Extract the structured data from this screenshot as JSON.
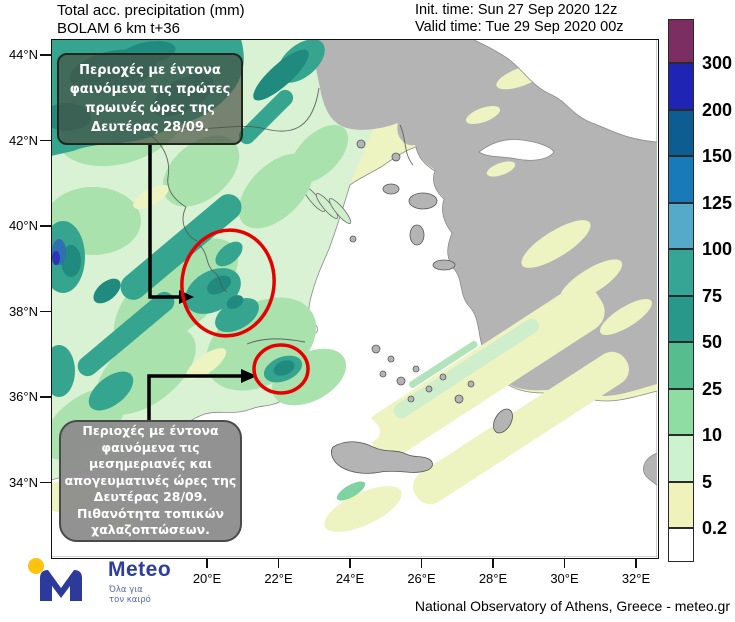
{
  "header": {
    "title_line1": "Total acc. precipitation (mm)",
    "title_line2": "BOLAM 6 km t+36",
    "init_time": "Init. time: Sun 27 Sep 2020 12z",
    "valid_time": "Valid time: Tue 29 Sep 2020 00z"
  },
  "map": {
    "lat_ticks": [
      "44°N",
      "42°N",
      "40°N",
      "38°N",
      "36°N",
      "34°N"
    ],
    "lon_ticks": [
      "20°E",
      "22°E",
      "24°E",
      "26°E",
      "28°E",
      "30°E",
      "32°E"
    ],
    "annotations": {
      "morning": "Περιοχές με έντονα\nφαινόμενα  τις πρώτες\nπρωινές ώρες της\nΔευτέρας 28/09.",
      "afternoon": "Περιοχές με έντονα\nφαινόμενα  τις\nμεσημεριανές και\nαπογευματινές ώρες της\nΔευτέρας 28/09.\nΠιθανότητα τοπικών\nχαλαζοπτώσεων."
    },
    "highlight_color": "#e60000"
  },
  "colorbar": {
    "units": "mm",
    "levels": [
      "300",
      "200",
      "150",
      "125",
      "100",
      "75",
      "50",
      "25",
      "10",
      "5",
      "0.2"
    ],
    "colors_top_to_bottom": [
      "#7c2d62",
      "#1f24b4",
      "#0d5d92",
      "#187ab8",
      "#54aac8",
      "#35a695",
      "#279889",
      "#56bd8f",
      "#90dda4",
      "#cdf2d0",
      "#eff3bb",
      "#ffffff"
    ]
  },
  "footer": {
    "logo_text": "Meteo",
    "logo_tagline": "Όλα για\nτον καιρό",
    "attribution": "National Observatory of Athens, Greece - meteo.gr"
  }
}
